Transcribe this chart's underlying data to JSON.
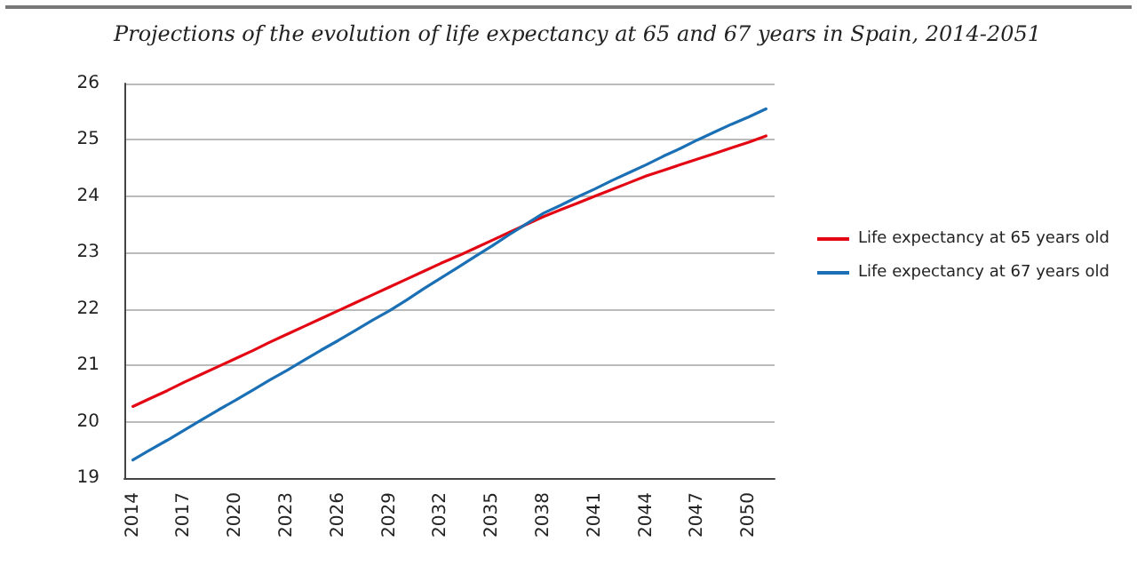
{
  "chart_data": {
    "type": "line",
    "title": "Projections of the evolution of life expectancy at 65 and 67 years in Spain, 2014-2051",
    "categories": [
      "2014",
      null,
      null,
      "2017",
      null,
      null,
      "2020",
      null,
      null,
      "2023",
      null,
      null,
      "2026",
      null,
      null,
      "2029",
      null,
      null,
      "2032",
      null,
      null,
      "2035",
      null,
      null,
      "2038",
      null,
      null,
      "2041",
      null,
      null,
      "2044",
      null,
      null,
      "2047",
      null,
      null,
      "2050",
      null
    ],
    "series": [
      {
        "name": "Life expectancy at 65 years old",
        "color": "#e30613",
        "values": [
          20.27,
          20.41,
          20.55,
          20.7,
          20.84,
          20.98,
          21.12,
          21.26,
          21.41,
          21.55,
          21.69,
          21.83,
          21.97,
          22.11,
          22.25,
          22.39,
          22.53,
          22.67,
          22.81,
          22.94,
          23.08,
          23.22,
          23.36,
          23.5,
          23.64,
          23.76,
          23.88,
          24.0,
          24.12,
          24.24,
          24.36,
          24.46,
          24.56,
          24.66,
          24.76,
          24.86,
          24.96,
          25.07
        ]
      },
      {
        "name": "Life expectancy at 67 years old",
        "color": "#1a6fb5",
        "values": [
          19.32,
          19.5,
          19.67,
          19.85,
          20.03,
          20.21,
          20.38,
          20.56,
          20.74,
          20.91,
          21.09,
          21.27,
          21.44,
          21.62,
          21.8,
          21.97,
          22.16,
          22.36,
          22.55,
          22.74,
          22.93,
          23.12,
          23.32,
          23.51,
          23.7,
          23.84,
          23.99,
          24.13,
          24.28,
          24.42,
          24.56,
          24.71,
          24.85,
          25.0,
          25.14,
          25.28,
          25.41,
          25.55
        ]
      }
    ],
    "ylim": [
      19,
      26
    ],
    "yticks": [
      19,
      20,
      21,
      22,
      23,
      24,
      25,
      26
    ],
    "grid": "y",
    "legend": "right",
    "marker": "none",
    "line_style": "solid"
  }
}
